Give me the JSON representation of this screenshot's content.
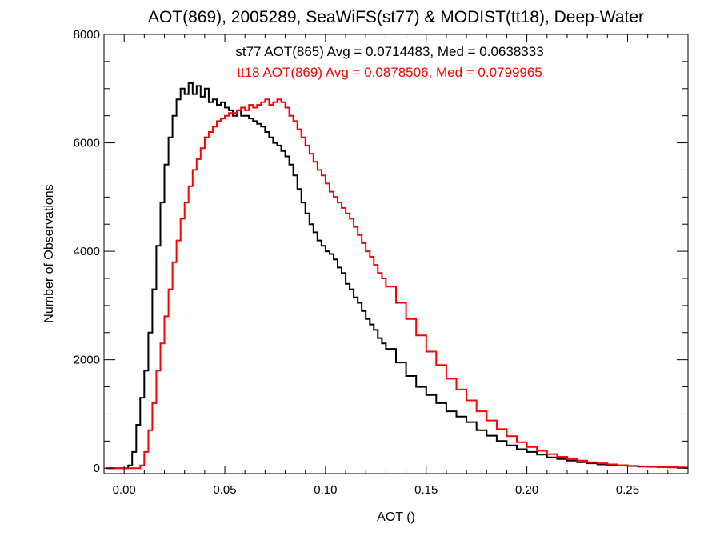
{
  "chart_data": {
    "type": "line",
    "step": true,
    "title": "AOT(869), 2005289, SeaWiFS(st77) & MODIST(tt18), Deep-Water",
    "xlabel": "AOT ()",
    "ylabel": "Number of Observations",
    "xlim": [
      -0.01,
      0.28
    ],
    "ylim": [
      -100,
      8000
    ],
    "xticks": [
      0.0,
      0.05,
      0.1,
      0.15,
      0.2,
      0.25
    ],
    "xtick_labels": [
      "0.00",
      "0.05",
      "0.10",
      "0.15",
      "0.20",
      "0.25"
    ],
    "yticks": [
      0,
      2000,
      4000,
      6000,
      8000
    ],
    "ytick_labels": [
      "0",
      "2000",
      "4000",
      "6000",
      "8000"
    ],
    "grid": false,
    "annotations": [
      {
        "text": "st77 AOT(865) Avg = 0.0714483, Med = 0.0638333",
        "color": "#000000"
      },
      {
        "text": "tt18 AOT(869) Avg = 0.0878506, Med = 0.0799965",
        "color": "#ff0000"
      }
    ],
    "series": [
      {
        "color": "#000000",
        "x": [
          -0.009,
          0.0,
          0.002,
          0.004,
          0.006,
          0.008,
          0.01,
          0.012,
          0.014,
          0.016,
          0.018,
          0.02,
          0.022,
          0.024,
          0.026,
          0.028,
          0.03,
          0.032,
          0.034,
          0.036,
          0.038,
          0.04,
          0.042,
          0.044,
          0.046,
          0.048,
          0.05,
          0.052,
          0.054,
          0.056,
          0.058,
          0.06,
          0.062,
          0.064,
          0.066,
          0.068,
          0.07,
          0.072,
          0.074,
          0.076,
          0.078,
          0.08,
          0.082,
          0.084,
          0.086,
          0.088,
          0.09,
          0.092,
          0.094,
          0.096,
          0.098,
          0.1,
          0.102,
          0.104,
          0.106,
          0.108,
          0.11,
          0.112,
          0.114,
          0.116,
          0.118,
          0.12,
          0.122,
          0.124,
          0.126,
          0.128,
          0.13,
          0.135,
          0.14,
          0.145,
          0.15,
          0.155,
          0.16,
          0.165,
          0.17,
          0.175,
          0.18,
          0.185,
          0.19,
          0.195,
          0.2,
          0.205,
          0.21,
          0.215,
          0.22,
          0.225,
          0.23,
          0.235,
          0.24,
          0.245,
          0.25,
          0.255,
          0.26,
          0.265,
          0.27,
          0.275,
          0.278
        ],
        "values": [
          0,
          0,
          50,
          300,
          800,
          1300,
          1800,
          2500,
          3300,
          4100,
          4900,
          5600,
          6100,
          6500,
          6800,
          7000,
          6900,
          7100,
          6900,
          7050,
          6850,
          7000,
          6750,
          6800,
          6700,
          6750,
          6650,
          6600,
          6500,
          6600,
          6500,
          6500,
          6450,
          6400,
          6350,
          6300,
          6200,
          6100,
          6000,
          5950,
          5850,
          5750,
          5600,
          5400,
          5150,
          4900,
          4700,
          4500,
          4350,
          4200,
          4100,
          4000,
          3950,
          3850,
          3700,
          3600,
          3400,
          3300,
          3150,
          3050,
          2900,
          2750,
          2650,
          2550,
          2400,
          2300,
          2200,
          1950,
          1700,
          1500,
          1350,
          1200,
          1050,
          950,
          850,
          700,
          600,
          500,
          420,
          350,
          300,
          250,
          200,
          170,
          140,
          110,
          90,
          70,
          60,
          50,
          40,
          30,
          25,
          20,
          15,
          10,
          8
        ]
      },
      {
        "color": "#ff0000",
        "x": [
          -0.009,
          0.0,
          0.004,
          0.008,
          0.01,
          0.012,
          0.014,
          0.016,
          0.018,
          0.02,
          0.022,
          0.024,
          0.026,
          0.028,
          0.03,
          0.032,
          0.034,
          0.036,
          0.038,
          0.04,
          0.042,
          0.044,
          0.046,
          0.048,
          0.05,
          0.052,
          0.054,
          0.056,
          0.058,
          0.06,
          0.062,
          0.064,
          0.066,
          0.068,
          0.07,
          0.072,
          0.074,
          0.076,
          0.078,
          0.08,
          0.082,
          0.084,
          0.086,
          0.088,
          0.09,
          0.092,
          0.094,
          0.096,
          0.098,
          0.1,
          0.102,
          0.104,
          0.106,
          0.108,
          0.11,
          0.112,
          0.114,
          0.116,
          0.118,
          0.12,
          0.122,
          0.124,
          0.126,
          0.128,
          0.13,
          0.135,
          0.14,
          0.145,
          0.15,
          0.155,
          0.16,
          0.165,
          0.17,
          0.175,
          0.18,
          0.185,
          0.19,
          0.195,
          0.2,
          0.205,
          0.21,
          0.215,
          0.22,
          0.225,
          0.23,
          0.235,
          0.24,
          0.245,
          0.25,
          0.255,
          0.26,
          0.265,
          0.27,
          0.275,
          0.278
        ],
        "values": [
          0,
          0,
          0,
          50,
          300,
          700,
          1200,
          1800,
          2300,
          2800,
          3300,
          3800,
          4200,
          4600,
          4900,
          5200,
          5500,
          5700,
          5900,
          6100,
          6200,
          6300,
          6400,
          6450,
          6500,
          6550,
          6550,
          6600,
          6650,
          6600,
          6700,
          6650,
          6700,
          6750,
          6800,
          6700,
          6750,
          6800,
          6750,
          6650,
          6500,
          6400,
          6250,
          6100,
          5950,
          5800,
          5650,
          5500,
          5400,
          5250,
          5100,
          5000,
          4900,
          4800,
          4700,
          4600,
          4450,
          4300,
          4150,
          4000,
          3900,
          3750,
          3600,
          3500,
          3350,
          3050,
          2750,
          2450,
          2150,
          1900,
          1650,
          1450,
          1250,
          1050,
          880,
          720,
          590,
          480,
          390,
          320,
          260,
          210,
          170,
          140,
          110,
          90,
          70,
          55,
          45,
          35,
          28,
          22,
          18,
          14,
          10
        ]
      }
    ]
  }
}
